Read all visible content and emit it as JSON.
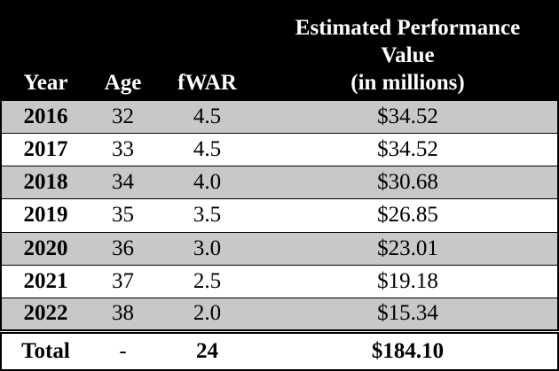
{
  "table": {
    "header": [
      "Year",
      "Age",
      "fWAR",
      [
        "Estimated Performance",
        "Value",
        "(in millions)"
      ]
    ],
    "rows": [
      [
        "2016",
        "32",
        "4.5",
        "$34.52"
      ],
      [
        "2017",
        "33",
        "4.5",
        "$34.52"
      ],
      [
        "2018",
        "34",
        "4.0",
        "$30.68"
      ],
      [
        "2019",
        "35",
        "3.5",
        "$26.85"
      ],
      [
        "2020",
        "36",
        "3.0",
        "$23.01"
      ],
      [
        "2021",
        "37",
        "2.5",
        "$19.18"
      ],
      [
        "2022",
        "38",
        "2.0",
        "$15.34"
      ]
    ],
    "total": [
      "Total",
      "-",
      "24",
      "$184.10"
    ]
  }
}
